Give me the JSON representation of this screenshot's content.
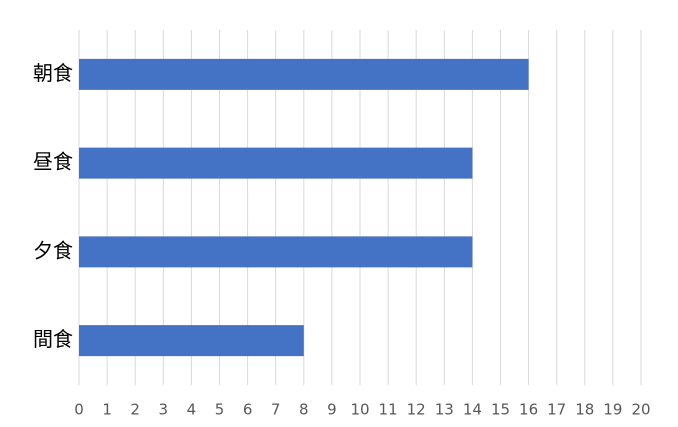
{
  "chart_data": {
    "type": "bar",
    "orientation": "horizontal",
    "categories": [
      "朝食",
      "昼食",
      "夕食",
      "間食"
    ],
    "values": [
      16,
      14,
      14,
      8
    ],
    "color": "#4472c4",
    "xlim": [
      0,
      20
    ],
    "xticks": [
      0,
      1,
      2,
      3,
      4,
      5,
      6,
      7,
      8,
      9,
      10,
      11,
      12,
      13,
      14,
      15,
      16,
      17,
      18,
      19,
      20
    ],
    "grid": true
  }
}
